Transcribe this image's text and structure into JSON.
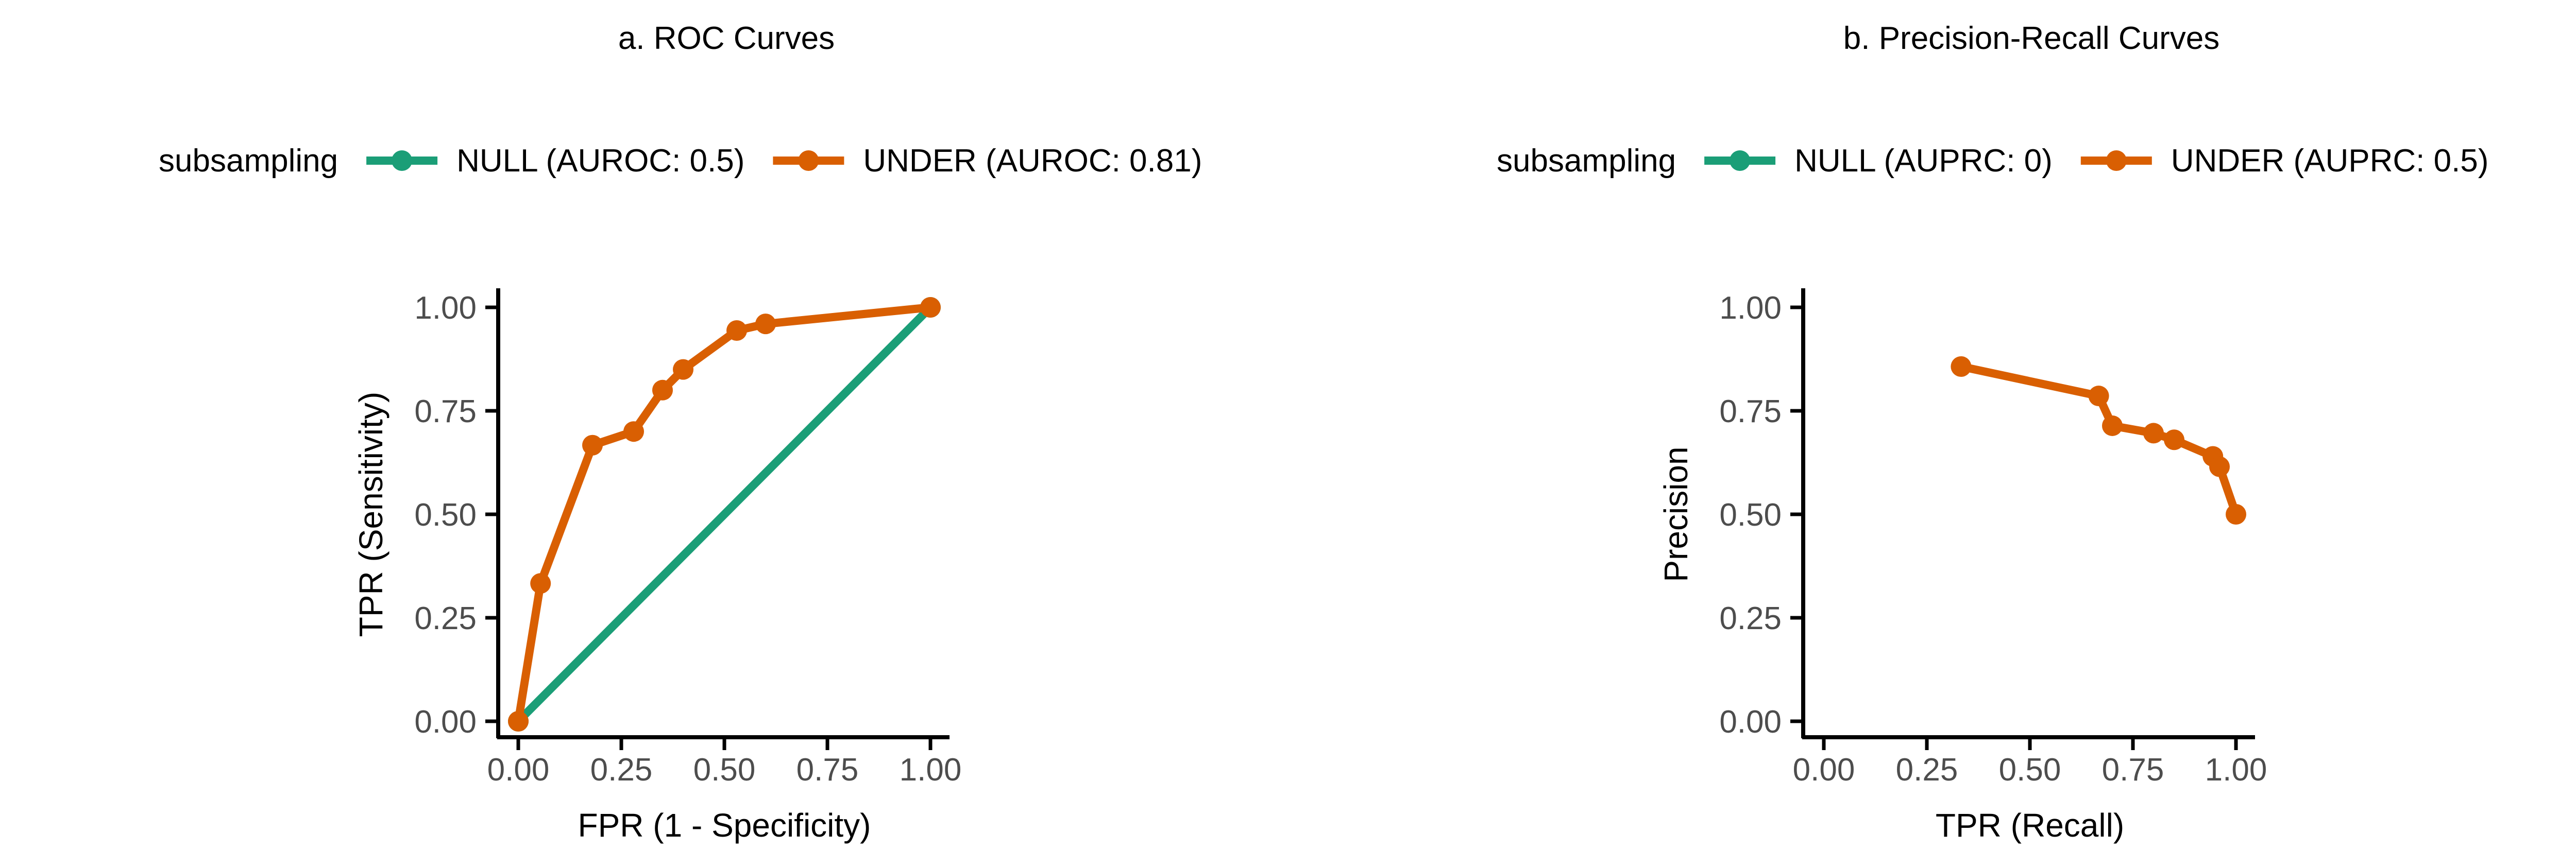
{
  "colors": {
    "null_series": "#1b9e77",
    "under_series": "#d95f02",
    "axis": "#000000",
    "tick_text": "#4d4d4d",
    "text": "#000000"
  },
  "chart_data": [
    {
      "type": "line",
      "title": "a. ROC Curves",
      "xlabel": "FPR (1 - Specificity)",
      "ylabel": "TPR (Sensitivity)",
      "xlim": [
        0,
        1
      ],
      "ylim": [
        0,
        1
      ],
      "xticks": [
        "0.00",
        "0.25",
        "0.50",
        "0.75",
        "1.00"
      ],
      "yticks": [
        "0.00",
        "0.25",
        "0.50",
        "0.75",
        "1.00"
      ],
      "grid": false,
      "legend": {
        "title": "subsampling",
        "position": "top",
        "entries": [
          "NULL (AUROC: 0.5)",
          "UNDER (AUROC: 0.81)"
        ]
      },
      "series": [
        {
          "name": "NULL (AUROC: 0.5)",
          "color": "#1b9e77",
          "points": [
            [
              0,
              0
            ],
            [
              1,
              1
            ]
          ]
        },
        {
          "name": "UNDER (AUROC: 0.81)",
          "color": "#d95f02",
          "points": [
            [
              0,
              0
            ],
            [
              0.054,
              0.333
            ],
            [
              0.18,
              0.667
            ],
            [
              0.28,
              0.7
            ],
            [
              0.35,
              0.8
            ],
            [
              0.4,
              0.85
            ],
            [
              0.53,
              0.944
            ],
            [
              0.6,
              0.96
            ],
            [
              1,
              1
            ]
          ]
        }
      ]
    },
    {
      "type": "line",
      "title": "b. Precision-Recall Curves",
      "xlabel": "TPR (Recall)",
      "ylabel": "Precision",
      "xlim": [
        0,
        1
      ],
      "ylim": [
        0,
        1
      ],
      "xticks": [
        "0.00",
        "0.25",
        "0.50",
        "0.75",
        "1.00"
      ],
      "yticks": [
        "0.00",
        "0.25",
        "0.50",
        "0.75",
        "1.00"
      ],
      "grid": false,
      "legend": {
        "title": "subsampling",
        "position": "top",
        "entries": [
          "NULL (AUPRC: 0)",
          "UNDER (AUPRC: 0.5)"
        ]
      },
      "series": [
        {
          "name": "NULL (AUPRC: 0)",
          "color": "#1b9e77",
          "points": []
        },
        {
          "name": "UNDER (AUPRC: 0.5)",
          "color": "#d95f02",
          "points": [
            [
              0.333,
              0.857
            ],
            [
              0.667,
              0.786
            ],
            [
              0.7,
              0.714
            ],
            [
              0.8,
              0.696
            ],
            [
              0.85,
              0.68
            ],
            [
              0.944,
              0.64
            ],
            [
              0.96,
              0.615
            ],
            [
              1,
              0.5
            ]
          ]
        }
      ]
    }
  ]
}
